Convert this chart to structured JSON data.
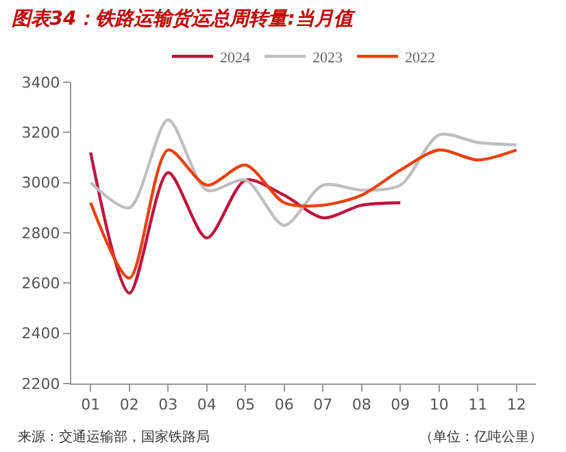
{
  "chart_data": {
    "type": "line",
    "title": "图表34：铁路运输货运总周转量:当月值",
    "categories": [
      "01",
      "02",
      "03",
      "04",
      "05",
      "06",
      "07",
      "08",
      "09",
      "10",
      "11",
      "12"
    ],
    "series": [
      {
        "name": "2024",
        "color": "#c0143c",
        "values": [
          3120,
          2560,
          3040,
          2780,
          3010,
          2950,
          2860,
          2910,
          2920,
          null,
          null,
          null
        ]
      },
      {
        "name": "2023",
        "color": "#bfbfbf",
        "values": [
          3000,
          2900,
          3250,
          2970,
          3010,
          2830,
          2990,
          2970,
          2990,
          3190,
          3160,
          3150
        ]
      },
      {
        "name": "2022",
        "color": "#e8420e",
        "values": [
          2920,
          2620,
          3130,
          2990,
          3070,
          2920,
          2910,
          2950,
          3050,
          3130,
          3090,
          3130
        ]
      }
    ],
    "ylim": [
      2200,
      3400
    ],
    "yticks": [
      2200,
      2400,
      2600,
      2800,
      3000,
      3200,
      3400
    ],
    "grid": false,
    "legend": "top",
    "marker": "none",
    "line_style": "solid",
    "annotations": [
      "来源：交通运输部，国家铁路局",
      "（单位：亿吨公里）"
    ]
  }
}
